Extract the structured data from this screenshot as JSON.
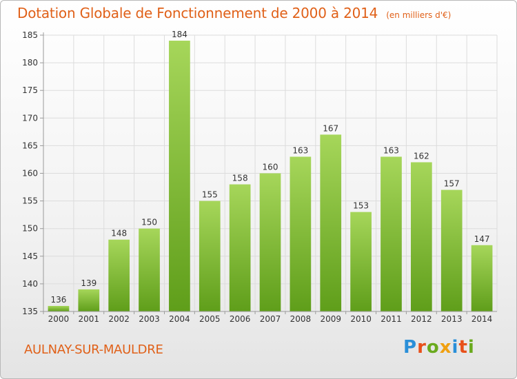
{
  "title": "Dotation Globale de Fonctionnement de 2000 à 2014",
  "subtitle": "(en milliers d'€)",
  "commune": "AULNAY-SUR-MAULDRE",
  "logo": {
    "text": "Proxiti",
    "colors": [
      "#2a8fd8",
      "#e8501a",
      "#6aaa1e",
      "#f0a010",
      "#2a8fd8",
      "#e8501a",
      "#6aaa1e"
    ]
  },
  "colors": {
    "bar_top": "#a6d65a",
    "bar_bottom": "#5f9e1a",
    "title": "#e06018",
    "axis": "#9a9a9a",
    "grid": "#dcdcdc"
  },
  "chart_data": {
    "type": "bar",
    "title": "Dotation Globale de Fonctionnement de 2000 à 2014",
    "subtitle": "(en milliers d'€)",
    "xlabel": "",
    "ylabel": "",
    "categories": [
      "2000",
      "2001",
      "2002",
      "2003",
      "2004",
      "2005",
      "2006",
      "2007",
      "2008",
      "2009",
      "2010",
      "2011",
      "2012",
      "2013",
      "2014"
    ],
    "values": [
      136,
      139,
      148,
      150,
      184,
      155,
      158,
      160,
      163,
      167,
      153,
      163,
      162,
      157,
      147
    ],
    "ylim": [
      135,
      185
    ],
    "yticks": [
      135,
      140,
      145,
      150,
      155,
      160,
      165,
      170,
      175,
      180,
      185
    ],
    "grid": true,
    "data_labels": true
  }
}
